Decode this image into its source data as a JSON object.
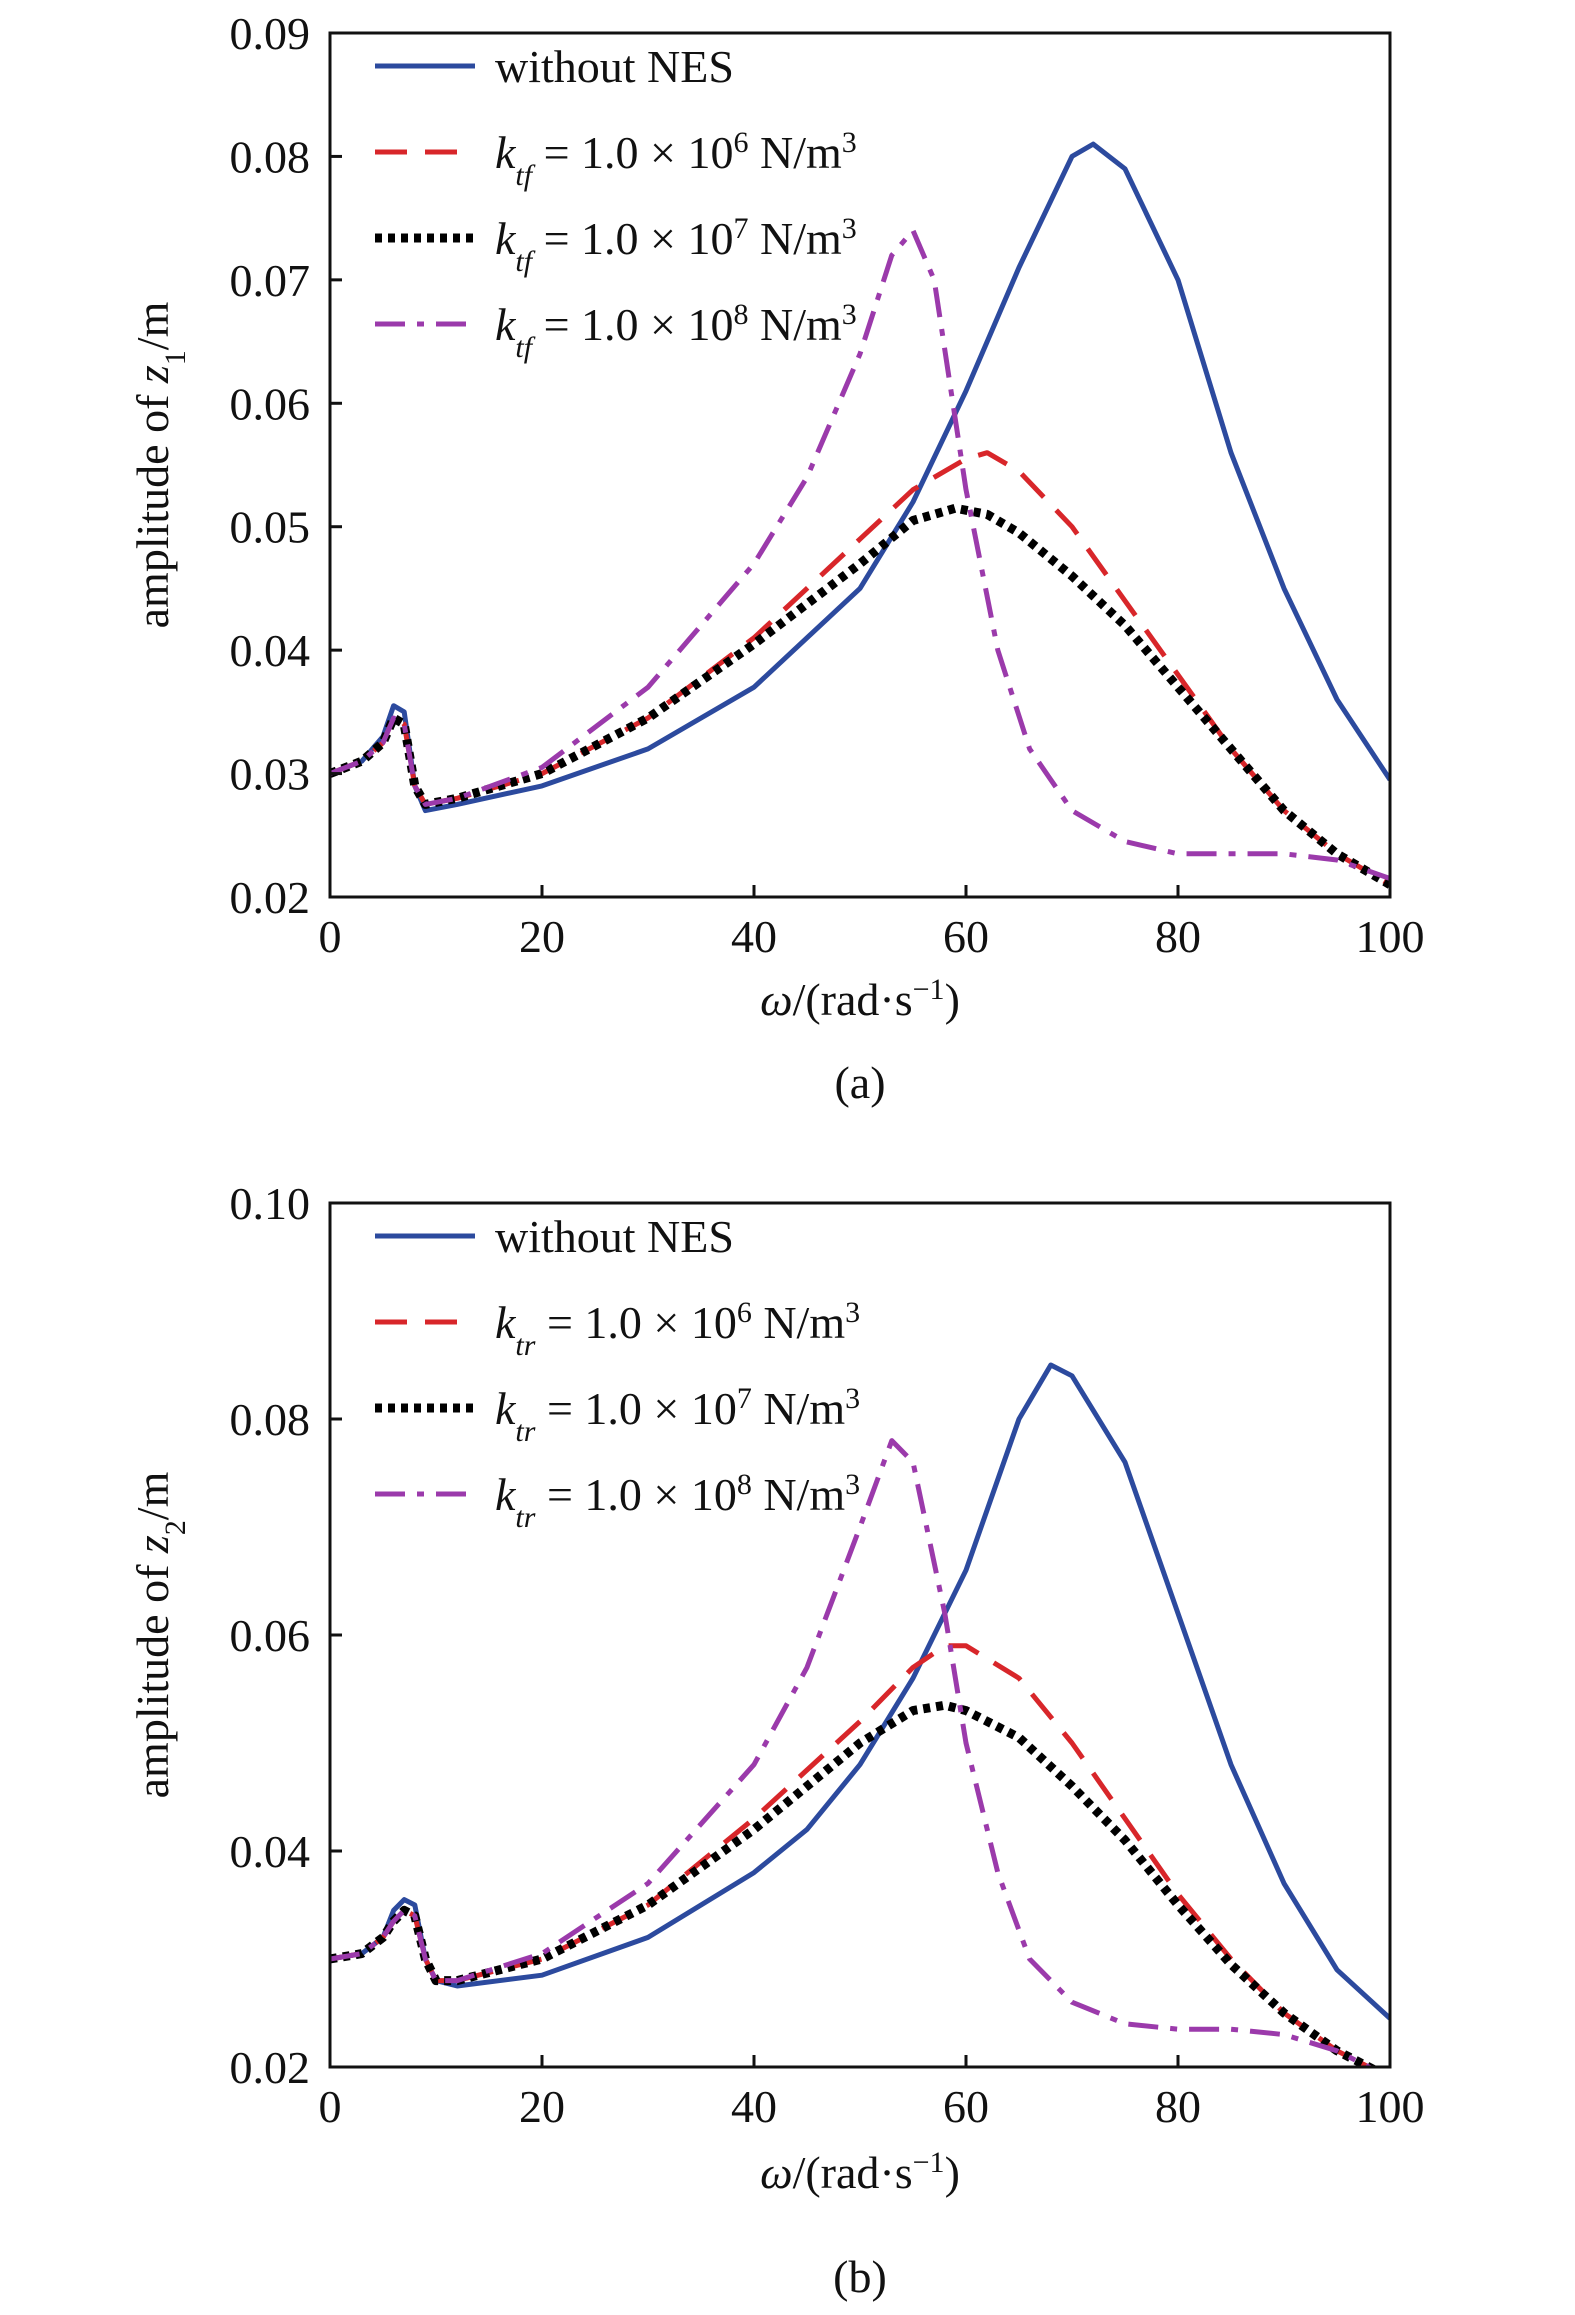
{
  "chart_data": [
    {
      "type": "line",
      "panel_label": "(a)",
      "xlabel": {
        "sym": "ω",
        "rest": "/(rad·s",
        "sup": "−1",
        "end": ")"
      },
      "ylabel": {
        "pre": "amplitude of ",
        "var": "z",
        "sub": "1",
        "post": "/m"
      },
      "xlim": [
        0,
        100
      ],
      "ylim": [
        0.02,
        0.09
      ],
      "xticks": [
        0,
        20,
        40,
        60,
        80,
        100
      ],
      "yticks": [
        0.02,
        0.03,
        0.04,
        0.05,
        0.06,
        0.07,
        0.08,
        0.09
      ],
      "ytick_labels": [
        "0.02",
        "0.03",
        "0.04",
        "0.05",
        "0.06",
        "0.07",
        "0.08",
        "0.09"
      ],
      "grid": false,
      "legend_position": "top-left",
      "series": [
        {
          "label": {
            "plain": "without NES"
          },
          "color": "#2c4a9e",
          "style": "solid",
          "points": [
            [
              0,
              0.03
            ],
            [
              3,
              0.031
            ],
            [
              5,
              0.033
            ],
            [
              6,
              0.0355
            ],
            [
              7,
              0.035
            ],
            [
              8,
              0.029
            ],
            [
              9,
              0.027
            ],
            [
              12,
              0.0275
            ],
            [
              20,
              0.029
            ],
            [
              30,
              0.032
            ],
            [
              40,
              0.037
            ],
            [
              50,
              0.045
            ],
            [
              55,
              0.052
            ],
            [
              60,
              0.061
            ],
            [
              65,
              0.071
            ],
            [
              70,
              0.08
            ],
            [
              72,
              0.081
            ],
            [
              75,
              0.079
            ],
            [
              80,
              0.07
            ],
            [
              85,
              0.056
            ],
            [
              90,
              0.045
            ],
            [
              95,
              0.036
            ],
            [
              100,
              0.0295
            ]
          ]
        },
        {
          "label": {
            "sym": "k",
            "sub": "tf",
            "text": " = 1.0 × 10",
            "exp": "6",
            "unit": " N/m",
            "unit_sup": "3"
          },
          "color": "#d8262a",
          "style": "dashed",
          "points": [
            [
              0,
              0.03
            ],
            [
              3,
              0.031
            ],
            [
              5,
              0.0325
            ],
            [
              6,
              0.0345
            ],
            [
              7,
              0.034
            ],
            [
              8,
              0.029
            ],
            [
              9,
              0.0275
            ],
            [
              12,
              0.028
            ],
            [
              20,
              0.03
            ],
            [
              30,
              0.0345
            ],
            [
              40,
              0.041
            ],
            [
              50,
              0.049
            ],
            [
              55,
              0.053
            ],
            [
              60,
              0.0555
            ],
            [
              62,
              0.056
            ],
            [
              65,
              0.0545
            ],
            [
              70,
              0.05
            ],
            [
              75,
              0.044
            ],
            [
              80,
              0.038
            ],
            [
              85,
              0.032
            ],
            [
              90,
              0.027
            ],
            [
              95,
              0.0235
            ],
            [
              100,
              0.021
            ]
          ]
        },
        {
          "label": {
            "sym": "k",
            "sub": "tf",
            "text": " = 1.0 × 10",
            "exp": "7",
            "unit": " N/m",
            "unit_sup": "3"
          },
          "color": "#000000",
          "style": "dotted",
          "points": [
            [
              0,
              0.03
            ],
            [
              3,
              0.031
            ],
            [
              5,
              0.0325
            ],
            [
              6,
              0.0345
            ],
            [
              7,
              0.034
            ],
            [
              8,
              0.029
            ],
            [
              9,
              0.0275
            ],
            [
              12,
              0.028
            ],
            [
              20,
              0.03
            ],
            [
              30,
              0.0345
            ],
            [
              40,
              0.0405
            ],
            [
              50,
              0.047
            ],
            [
              55,
              0.0505
            ],
            [
              59,
              0.0515
            ],
            [
              62,
              0.051
            ],
            [
              65,
              0.0495
            ],
            [
              70,
              0.046
            ],
            [
              75,
              0.042
            ],
            [
              80,
              0.037
            ],
            [
              85,
              0.032
            ],
            [
              90,
              0.027
            ],
            [
              95,
              0.0235
            ],
            [
              100,
              0.021
            ]
          ]
        },
        {
          "label": {
            "sym": "k",
            "sub": "tf",
            "text": " = 1.0 × 10",
            "exp": "8",
            "unit": " N/m",
            "unit_sup": "3"
          },
          "color": "#9b3aab",
          "style": "dashdot",
          "points": [
            [
              0,
              0.03
            ],
            [
              3,
              0.031
            ],
            [
              5,
              0.0325
            ],
            [
              6,
              0.0345
            ],
            [
              7,
              0.034
            ],
            [
              8,
              0.029
            ],
            [
              9,
              0.0275
            ],
            [
              12,
              0.028
            ],
            [
              20,
              0.0305
            ],
            [
              30,
              0.037
            ],
            [
              40,
              0.047
            ],
            [
              45,
              0.054
            ],
            [
              50,
              0.064
            ],
            [
              53,
              0.072
            ],
            [
              55,
              0.074
            ],
            [
              57,
              0.07
            ],
            [
              60,
              0.053
            ],
            [
              63,
              0.04
            ],
            [
              66,
              0.032
            ],
            [
              70,
              0.027
            ],
            [
              75,
              0.0245
            ],
            [
              80,
              0.0235
            ],
            [
              85,
              0.0235
            ],
            [
              90,
              0.0235
            ],
            [
              95,
              0.023
            ],
            [
              100,
              0.0215
            ]
          ]
        }
      ]
    },
    {
      "type": "line",
      "panel_label": "(b)",
      "xlabel": {
        "sym": "ω",
        "rest": "/(rad·s",
        "sup": "−1",
        "end": ")"
      },
      "ylabel": {
        "pre": "amplitude of ",
        "var": "z",
        "sub": "2",
        "post": "/m"
      },
      "xlim": [
        0,
        100
      ],
      "ylim": [
        0.02,
        0.1
      ],
      "xticks": [
        0,
        20,
        40,
        60,
        80,
        100
      ],
      "yticks": [
        0.02,
        0.04,
        0.06,
        0.08,
        0.1
      ],
      "ytick_labels": [
        "0.02",
        "0.04",
        "0.06",
        "0.08",
        "0.10"
      ],
      "grid": false,
      "legend_position": "top-left",
      "series": [
        {
          "label": {
            "plain": "without NES"
          },
          "color": "#2c4a9e",
          "style": "solid",
          "points": [
            [
              0,
              0.03
            ],
            [
              3,
              0.0305
            ],
            [
              5,
              0.032
            ],
            [
              6,
              0.0345
            ],
            [
              7,
              0.0355
            ],
            [
              8,
              0.035
            ],
            [
              9,
              0.03
            ],
            [
              10,
              0.028
            ],
            [
              12,
              0.0275
            ],
            [
              20,
              0.0285
            ],
            [
              30,
              0.032
            ],
            [
              40,
              0.038
            ],
            [
              45,
              0.042
            ],
            [
              50,
              0.048
            ],
            [
              55,
              0.056
            ],
            [
              60,
              0.066
            ],
            [
              65,
              0.08
            ],
            [
              68,
              0.085
            ],
            [
              70,
              0.084
            ],
            [
              75,
              0.076
            ],
            [
              80,
              0.062
            ],
            [
              85,
              0.048
            ],
            [
              90,
              0.037
            ],
            [
              95,
              0.029
            ],
            [
              100,
              0.0245
            ]
          ]
        },
        {
          "label": {
            "sym": "k",
            "sub": "tr",
            "text": " = 1.0 × 10",
            "exp": "6",
            "unit": " N/m",
            "unit_sup": "3"
          },
          "color": "#d8262a",
          "style": "dashed",
          "points": [
            [
              0,
              0.03
            ],
            [
              3,
              0.0305
            ],
            [
              5,
              0.032
            ],
            [
              6,
              0.0335
            ],
            [
              7,
              0.0345
            ],
            [
              8,
              0.034
            ],
            [
              9,
              0.03
            ],
            [
              10,
              0.028
            ],
            [
              12,
              0.028
            ],
            [
              20,
              0.03
            ],
            [
              30,
              0.035
            ],
            [
              40,
              0.043
            ],
            [
              50,
              0.052
            ],
            [
              55,
              0.057
            ],
            [
              58,
              0.059
            ],
            [
              60,
              0.059
            ],
            [
              65,
              0.056
            ],
            [
              70,
              0.05
            ],
            [
              75,
              0.043
            ],
            [
              80,
              0.036
            ],
            [
              85,
              0.03
            ],
            [
              90,
              0.025
            ],
            [
              95,
              0.0215
            ],
            [
              100,
              0.019
            ]
          ]
        },
        {
          "label": {
            "sym": "k",
            "sub": "tr",
            "text": " = 1.0 × 10",
            "exp": "7",
            "unit": " N/m",
            "unit_sup": "3"
          },
          "color": "#000000",
          "style": "dotted",
          "points": [
            [
              0,
              0.03
            ],
            [
              3,
              0.0305
            ],
            [
              5,
              0.032
            ],
            [
              6,
              0.0335
            ],
            [
              7,
              0.0345
            ],
            [
              8,
              0.034
            ],
            [
              9,
              0.03
            ],
            [
              10,
              0.028
            ],
            [
              12,
              0.028
            ],
            [
              20,
              0.03
            ],
            [
              30,
              0.035
            ],
            [
              40,
              0.042
            ],
            [
              50,
              0.05
            ],
            [
              55,
              0.053
            ],
            [
              58,
              0.0535
            ],
            [
              60,
              0.053
            ],
            [
              65,
              0.0505
            ],
            [
              70,
              0.046
            ],
            [
              75,
              0.041
            ],
            [
              80,
              0.035
            ],
            [
              85,
              0.0295
            ],
            [
              90,
              0.025
            ],
            [
              95,
              0.0215
            ],
            [
              100,
              0.019
            ]
          ]
        },
        {
          "label": {
            "sym": "k",
            "sub": "tr",
            "text": " = 1.0 × 10",
            "exp": "8",
            "unit": " N/m",
            "unit_sup": "3"
          },
          "color": "#9b3aab",
          "style": "dashdot",
          "points": [
            [
              0,
              0.03
            ],
            [
              3,
              0.0305
            ],
            [
              5,
              0.032
            ],
            [
              6,
              0.0335
            ],
            [
              7,
              0.0345
            ],
            [
              8,
              0.034
            ],
            [
              9,
              0.03
            ],
            [
              10,
              0.028
            ],
            [
              12,
              0.028
            ],
            [
              20,
              0.0305
            ],
            [
              30,
              0.037
            ],
            [
              40,
              0.048
            ],
            [
              45,
              0.057
            ],
            [
              50,
              0.07
            ],
            [
              53,
              0.078
            ],
            [
              55,
              0.076
            ],
            [
              58,
              0.062
            ],
            [
              60,
              0.05
            ],
            [
              63,
              0.038
            ],
            [
              66,
              0.03
            ],
            [
              70,
              0.026
            ],
            [
              75,
              0.024
            ],
            [
              80,
              0.0235
            ],
            [
              85,
              0.0235
            ],
            [
              90,
              0.023
            ],
            [
              95,
              0.0215
            ],
            [
              100,
              0.019
            ]
          ]
        }
      ]
    }
  ]
}
